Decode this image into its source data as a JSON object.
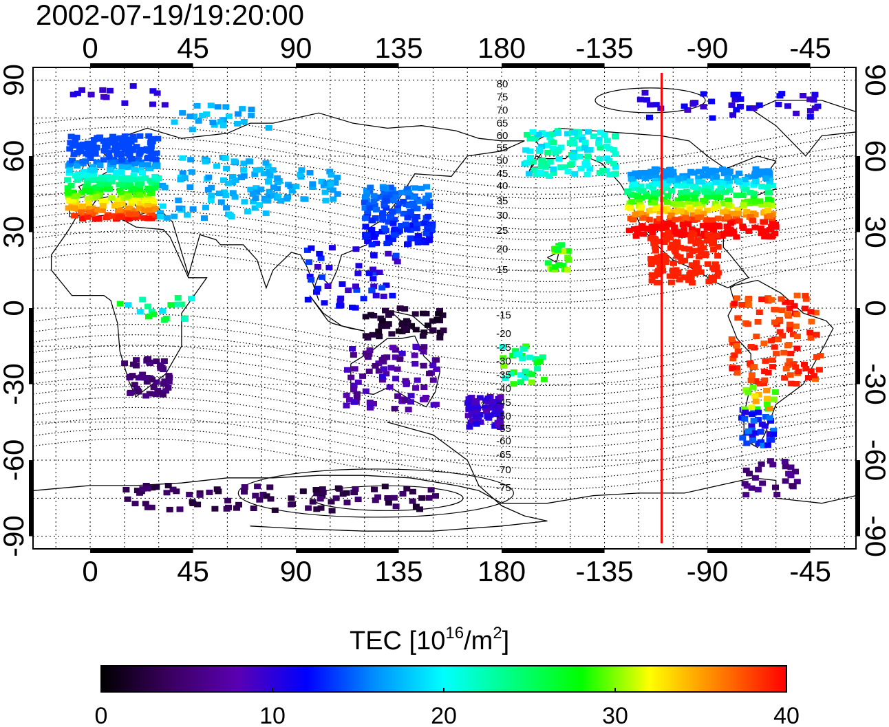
{
  "title": "2002-07-19/19:20:00",
  "map": {
    "lon_ticks_bottom": [
      "0",
      "45",
      "90",
      "135",
      "180",
      "-135",
      "-90",
      "-45"
    ],
    "lon_ticks_top": [
      "0",
      "45",
      "90",
      "135",
      "180",
      "-135",
      "-90",
      "-45"
    ],
    "lat_ticks_left": [
      "90",
      "60",
      "30",
      "0",
      "-30",
      "-60",
      "-90"
    ],
    "lat_ticks_right": [
      "90",
      "60",
      "30",
      "0",
      "-30",
      "-60",
      "-90"
    ],
    "lon_range": [
      -25,
      335
    ],
    "lat_range": [
      -95,
      95
    ],
    "contour_labels_north": [
      "80",
      "75",
      "70",
      "65",
      "60",
      "55",
      "50",
      "45",
      "40",
      "35",
      "30",
      "25",
      "20",
      "15"
    ],
    "contour_labels_south": [
      "-15",
      "-20",
      "-25",
      "-30",
      "-35",
      "-40",
      "-45",
      "-50",
      "-55",
      "-60",
      "-65",
      "-70",
      "-75"
    ],
    "marker_longitude": -110,
    "marker_color": "#ff0000",
    "grid": "dotted"
  },
  "colorbar": {
    "label_main": "TEC  [10",
    "label_sup": "16",
    "label_mid": "/m",
    "label_sup2": "2",
    "label_end": "]",
    "min": 0,
    "max": 40,
    "ticks": [
      "0",
      "10",
      "20",
      "30",
      "40"
    ],
    "colors": [
      "#000000",
      "#3a0060",
      "#5a00b4",
      "#0000ff",
      "#0090ff",
      "#00ffff",
      "#00ff80",
      "#00ff00",
      "#ffff00",
      "#ff8000",
      "#ff0000"
    ]
  }
}
